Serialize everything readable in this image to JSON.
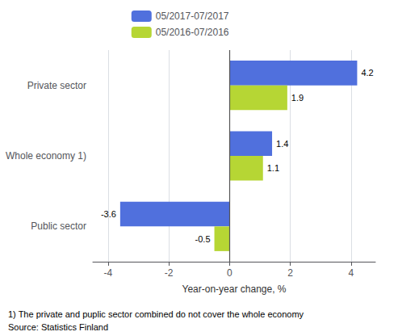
{
  "chart_data": {
    "type": "bar",
    "orientation": "horizontal",
    "categories": [
      "Public sector",
      "Whole economy 1)",
      "Private sector"
    ],
    "series": [
      {
        "name": "05/2017-07/2017",
        "values": [
          -3.6,
          1.4,
          4.2
        ]
      },
      {
        "name": "05/2016-07/2016",
        "values": [
          -0.5,
          1.1,
          1.9
        ]
      }
    ],
    "xlabel": "Year-on-year change, %",
    "xlim": [
      -4.5,
      4.8
    ],
    "xticks": [
      -4,
      -2,
      0,
      2,
      4
    ],
    "grid": true,
    "legend": "top",
    "data_labels": true,
    "annotations": [
      "1) The private and puplic sector combined do not cover the whole economy",
      "Source: Statistics Finland"
    ]
  }
}
